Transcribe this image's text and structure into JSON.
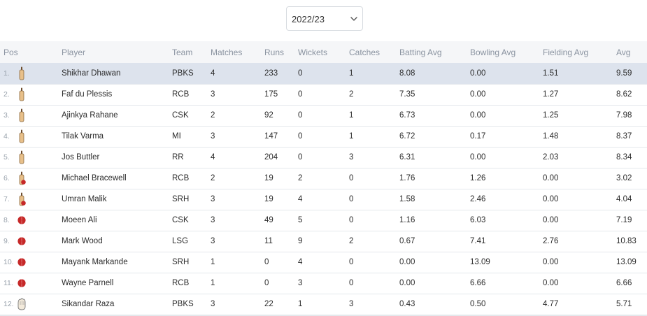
{
  "season_select": {
    "value": "2022/23",
    "icon": "chevron-down-icon"
  },
  "table": {
    "headers": {
      "pos": "Pos",
      "player": "Player",
      "team": "Team",
      "matches": "Matches",
      "runs": "Runs",
      "wickets": "Wickets",
      "catches": "Catches",
      "batting_avg": "Batting Avg",
      "bowling_avg": "Bowling Avg",
      "fielding_avg": "Fielding Avg",
      "avg": "Avg"
    },
    "rows": [
      {
        "pos": "1.",
        "role_icon": "bat-icon",
        "player": "Shikhar Dhawan",
        "team": "PBKS",
        "matches": "4",
        "runs": "233",
        "wickets": "0",
        "catches": "1",
        "batting_avg": "8.08",
        "bowling_avg": "0.00",
        "fielding_avg": "1.51",
        "avg": "9.59"
      },
      {
        "pos": "2.",
        "role_icon": "bat-icon",
        "player": "Faf du Plessis",
        "team": "RCB",
        "matches": "3",
        "runs": "175",
        "wickets": "0",
        "catches": "2",
        "batting_avg": "7.35",
        "bowling_avg": "0.00",
        "fielding_avg": "1.27",
        "avg": "8.62"
      },
      {
        "pos": "3.",
        "role_icon": "bat-icon",
        "player": "Ajinkya Rahane",
        "team": "CSK",
        "matches": "2",
        "runs": "92",
        "wickets": "0",
        "catches": "1",
        "batting_avg": "6.73",
        "bowling_avg": "0.00",
        "fielding_avg": "1.25",
        "avg": "7.98"
      },
      {
        "pos": "4.",
        "role_icon": "bat-icon",
        "player": "Tilak Varma",
        "team": "MI",
        "matches": "3",
        "runs": "147",
        "wickets": "0",
        "catches": "1",
        "batting_avg": "6.72",
        "bowling_avg": "0.17",
        "fielding_avg": "1.48",
        "avg": "8.37"
      },
      {
        "pos": "5.",
        "role_icon": "bat-icon",
        "player": "Jos Buttler",
        "team": "RR",
        "matches": "4",
        "runs": "204",
        "wickets": "0",
        "catches": "3",
        "batting_avg": "6.31",
        "bowling_avg": "0.00",
        "fielding_avg": "2.03",
        "avg": "8.34"
      },
      {
        "pos": "6.",
        "role_icon": "all-rounder-icon",
        "player": "Michael Bracewell",
        "team": "RCB",
        "matches": "2",
        "runs": "19",
        "wickets": "2",
        "catches": "0",
        "batting_avg": "1.76",
        "bowling_avg": "1.26",
        "fielding_avg": "0.00",
        "avg": "3.02"
      },
      {
        "pos": "7.",
        "role_icon": "all-rounder-icon",
        "player": "Umran Malik",
        "team": "SRH",
        "matches": "3",
        "runs": "19",
        "wickets": "4",
        "catches": "0",
        "batting_avg": "1.58",
        "bowling_avg": "2.46",
        "fielding_avg": "0.00",
        "avg": "4.04"
      },
      {
        "pos": "8.",
        "role_icon": "ball-icon",
        "player": "Moeen Ali",
        "team": "CSK",
        "matches": "3",
        "runs": "49",
        "wickets": "5",
        "catches": "0",
        "batting_avg": "1.16",
        "bowling_avg": "6.03",
        "fielding_avg": "0.00",
        "avg": "7.19"
      },
      {
        "pos": "9.",
        "role_icon": "ball-icon",
        "player": "Mark Wood",
        "team": "LSG",
        "matches": "3",
        "runs": "11",
        "wickets": "9",
        "catches": "2",
        "batting_avg": "0.67",
        "bowling_avg": "7.41",
        "fielding_avg": "2.76",
        "avg": "10.83"
      },
      {
        "pos": "10.",
        "role_icon": "ball-icon",
        "player": "Mayank Markande",
        "team": "SRH",
        "matches": "1",
        "runs": "0",
        "wickets": "4",
        "catches": "0",
        "batting_avg": "0.00",
        "bowling_avg": "13.09",
        "fielding_avg": "0.00",
        "avg": "13.09"
      },
      {
        "pos": "11.",
        "role_icon": "ball-icon",
        "player": "Wayne Parnell",
        "team": "RCB",
        "matches": "1",
        "runs": "0",
        "wickets": "3",
        "catches": "0",
        "batting_avg": "0.00",
        "bowling_avg": "6.66",
        "fielding_avg": "0.00",
        "avg": "6.66"
      },
      {
        "pos": "12.",
        "role_icon": "wicketkeeper-glove-icon",
        "player": "Sikandar Raza",
        "team": "PBKS",
        "matches": "3",
        "runs": "22",
        "wickets": "1",
        "catches": "3",
        "batting_avg": "0.43",
        "bowling_avg": "0.50",
        "fielding_avg": "4.77",
        "avg": "5.71"
      }
    ],
    "highlighted_row": 0
  },
  "colors": {
    "header_bg": "#f5f6f8",
    "highlight_bg": "#dde3ed",
    "bat": "#e8c08a",
    "ball": "#c62828"
  }
}
